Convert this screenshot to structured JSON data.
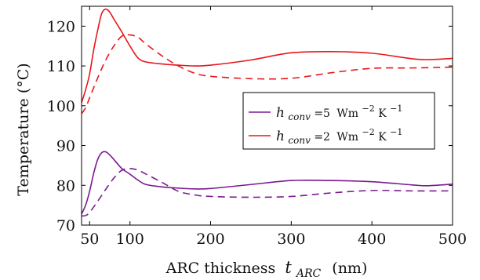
{
  "chart_data": {
    "type": "line",
    "xlabel": "ARC thickness",
    "xlabel_symbol": "t",
    "xlabel_subscript": "ARC",
    "xlabel_unit": "(nm)",
    "ylabel": "Temperature (°C)",
    "xlim": [
      40,
      500
    ],
    "ylim": [
      70,
      125
    ],
    "xticks": [
      50,
      100,
      200,
      300,
      400,
      500
    ],
    "yticks": [
      70,
      80,
      90,
      100,
      110,
      120
    ],
    "grid": false,
    "legend_position": "right",
    "series": [
      {
        "name": "h_conv=2 W m^-2 K^-1 (solid)",
        "color": "#e8161b",
        "dash": "solid",
        "points": [
          [
            40,
            100.8
          ],
          [
            45,
            104
          ],
          [
            50,
            108
          ],
          [
            55,
            114
          ],
          [
            60,
            119
          ],
          [
            65,
            123.2
          ],
          [
            70,
            124.3
          ],
          [
            75,
            123.5
          ],
          [
            80,
            121.8
          ],
          [
            90,
            118.5
          ],
          [
            100,
            115
          ],
          [
            110,
            112
          ],
          [
            120,
            111
          ],
          [
            140,
            110.5
          ],
          [
            160,
            110.2
          ],
          [
            180,
            110
          ],
          [
            200,
            110.2
          ],
          [
            250,
            111.5
          ],
          [
            300,
            113.3
          ],
          [
            350,
            113.6
          ],
          [
            400,
            113.2
          ],
          [
            450,
            111.8
          ],
          [
            470,
            111.6
          ],
          [
            500,
            111.9
          ]
        ]
      },
      {
        "name": "h_conv=2 W m^-2 K^-1 (dashed)",
        "color": "#e8161b",
        "dash": "dashed",
        "points": [
          [
            40,
            98
          ],
          [
            45,
            99.5
          ],
          [
            50,
            102
          ],
          [
            60,
            107
          ],
          [
            70,
            111.5
          ],
          [
            80,
            115
          ],
          [
            90,
            117.5
          ],
          [
            100,
            117.8
          ],
          [
            110,
            117.2
          ],
          [
            120,
            115.5
          ],
          [
            140,
            112.5
          ],
          [
            160,
            110
          ],
          [
            180,
            108.2
          ],
          [
            200,
            107.4
          ],
          [
            250,
            106.8
          ],
          [
            300,
            106.9
          ],
          [
            350,
            108.3
          ],
          [
            400,
            109.4
          ],
          [
            450,
            109.5
          ],
          [
            500,
            109.7
          ]
        ]
      },
      {
        "name": "h_conv=5 W m^-2 K^-1 (solid)",
        "color": "#7b1a90",
        "dash": "solid",
        "points": [
          [
            40,
            72.8
          ],
          [
            45,
            75
          ],
          [
            50,
            78.5
          ],
          [
            55,
            83
          ],
          [
            60,
            86.5
          ],
          [
            65,
            88.2
          ],
          [
            70,
            88.4
          ],
          [
            75,
            87.6
          ],
          [
            80,
            86.5
          ],
          [
            90,
            84.2
          ],
          [
            100,
            82.8
          ],
          [
            110,
            81.3
          ],
          [
            120,
            80.2
          ],
          [
            140,
            79.6
          ],
          [
            160,
            79.3
          ],
          [
            180,
            79.1
          ],
          [
            200,
            79.2
          ],
          [
            250,
            80.2
          ],
          [
            300,
            81.2
          ],
          [
            350,
            81.2
          ],
          [
            400,
            80.9
          ],
          [
            450,
            80.1
          ],
          [
            470,
            79.9
          ],
          [
            500,
            80.3
          ]
        ]
      },
      {
        "name": "h_conv=5 W m^-2 K^-1 (dashed)",
        "color": "#7b1a90",
        "dash": "dashed",
        "points": [
          [
            40,
            72.3
          ],
          [
            45,
            72.4
          ],
          [
            50,
            73.2
          ],
          [
            60,
            76
          ],
          [
            70,
            79
          ],
          [
            80,
            81.8
          ],
          [
            90,
            83.8
          ],
          [
            100,
            84.2
          ],
          [
            110,
            83.8
          ],
          [
            120,
            82.8
          ],
          [
            140,
            80.7
          ],
          [
            160,
            78.5
          ],
          [
            180,
            77.6
          ],
          [
            200,
            77.2
          ],
          [
            250,
            77
          ],
          [
            300,
            77.2
          ],
          [
            350,
            78.1
          ],
          [
            400,
            78.7
          ],
          [
            450,
            78.6
          ],
          [
            500,
            78.6
          ]
        ]
      }
    ],
    "legend": [
      {
        "symbol": "h",
        "subscript": "conv",
        "value_text": "=5",
        "unit_text": "Wm",
        "exp1": "−2",
        "unit2": "K",
        "exp2": "−1",
        "color": "#7b1a90"
      },
      {
        "symbol": "h",
        "subscript": "conv",
        "value_text": "=2",
        "unit_text": "Wm",
        "exp1": "−2",
        "unit2": "K",
        "exp2": "−1",
        "color": "#e8161b"
      }
    ]
  }
}
